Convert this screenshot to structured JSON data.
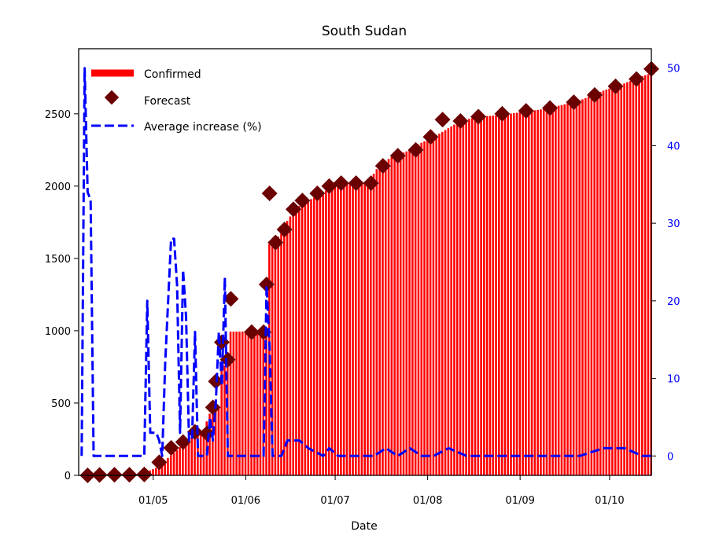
{
  "chart_data": {
    "type": "bar",
    "title": "South Sudan",
    "xlabel": "Date",
    "ylabel": "",
    "ylabel_right": "",
    "x_range": [
      "2020-04-06",
      "2020-10-15"
    ],
    "ylim": [
      0,
      2950
    ],
    "ylim_right": [
      -2.5,
      52.5
    ],
    "grid": false,
    "legend_position": "top-left",
    "x_ticks": [
      {
        "date": "2020-05-01",
        "label": "01/05"
      },
      {
        "date": "2020-06-01",
        "label": "01/06"
      },
      {
        "date": "2020-07-01",
        "label": "01/07"
      },
      {
        "date": "2020-08-01",
        "label": "01/08"
      },
      {
        "date": "2020-09-01",
        "label": "01/09"
      },
      {
        "date": "2020-10-01",
        "label": "01/10"
      }
    ],
    "y_ticks": [
      0,
      500,
      1000,
      1500,
      2000,
      2500
    ],
    "y_ticks_right": [
      0,
      10,
      20,
      30,
      40,
      50
    ],
    "colors": {
      "confirmed": "#ff0000",
      "forecast": "#6b0000",
      "average": "#0000ff",
      "right_axis": "#0000ff"
    },
    "series": [
      {
        "name": "Confirmed",
        "style": "bar",
        "points": [
          [
            "2020-04-06",
            1
          ],
          [
            "2020-04-10",
            2
          ],
          [
            "2020-04-15",
            4
          ],
          [
            "2020-04-20",
            4
          ],
          [
            "2020-04-25",
            5
          ],
          [
            "2020-04-30",
            34
          ],
          [
            "2020-05-03",
            60
          ],
          [
            "2020-05-06",
            120
          ],
          [
            "2020-05-09",
            175
          ],
          [
            "2020-05-12",
            235
          ],
          [
            "2020-05-15",
            280
          ],
          [
            "2020-05-18",
            320
          ],
          [
            "2020-05-21",
            480
          ],
          [
            "2020-05-24",
            760
          ],
          [
            "2020-05-27",
            994
          ],
          [
            "2020-06-01",
            994
          ],
          [
            "2020-06-05",
            994
          ],
          [
            "2020-06-08",
            994
          ],
          [
            "2020-06-09",
            1600
          ],
          [
            "2020-06-12",
            1650
          ],
          [
            "2020-06-15",
            1760
          ],
          [
            "2020-06-18",
            1850
          ],
          [
            "2020-06-22",
            1900
          ],
          [
            "2020-06-26",
            1940
          ],
          [
            "2020-06-30",
            2000
          ],
          [
            "2020-07-04",
            2020
          ],
          [
            "2020-07-08",
            2020
          ],
          [
            "2020-07-12",
            2020
          ],
          [
            "2020-07-16",
            2150
          ],
          [
            "2020-07-20",
            2200
          ],
          [
            "2020-07-25",
            2240
          ],
          [
            "2020-07-30",
            2300
          ],
          [
            "2020-08-04",
            2350
          ],
          [
            "2020-08-08",
            2400
          ],
          [
            "2020-08-12",
            2450
          ],
          [
            "2020-08-18",
            2480
          ],
          [
            "2020-08-25",
            2490
          ],
          [
            "2020-09-01",
            2510
          ],
          [
            "2020-09-08",
            2530
          ],
          [
            "2020-09-15",
            2560
          ],
          [
            "2020-09-22",
            2600
          ],
          [
            "2020-09-29",
            2660
          ],
          [
            "2020-10-06",
            2710
          ],
          [
            "2020-10-12",
            2760
          ],
          [
            "2020-10-15",
            2780
          ]
        ]
      },
      {
        "name": "Forecast",
        "style": "diamond",
        "points": [
          [
            "2020-04-09",
            0
          ],
          [
            "2020-04-13",
            3
          ],
          [
            "2020-04-18",
            4
          ],
          [
            "2020-04-23",
            4
          ],
          [
            "2020-04-28",
            6
          ],
          [
            "2020-05-03",
            90
          ],
          [
            "2020-05-07",
            190
          ],
          [
            "2020-05-11",
            230
          ],
          [
            "2020-05-15",
            300
          ],
          [
            "2020-05-19",
            290
          ],
          [
            "2020-05-21",
            470
          ],
          [
            "2020-05-22",
            650
          ],
          [
            "2020-05-24",
            920
          ],
          [
            "2020-05-26",
            800
          ],
          [
            "2020-05-27",
            1220
          ],
          [
            "2020-06-03",
            990
          ],
          [
            "2020-06-07",
            990
          ],
          [
            "2020-06-08",
            1320
          ],
          [
            "2020-06-09",
            1950
          ],
          [
            "2020-06-11",
            1610
          ],
          [
            "2020-06-14",
            1700
          ],
          [
            "2020-06-17",
            1840
          ],
          [
            "2020-06-20",
            1900
          ],
          [
            "2020-06-25",
            1950
          ],
          [
            "2020-06-29",
            2000
          ],
          [
            "2020-07-03",
            2020
          ],
          [
            "2020-07-08",
            2020
          ],
          [
            "2020-07-13",
            2020
          ],
          [
            "2020-07-17",
            2140
          ],
          [
            "2020-07-22",
            2210
          ],
          [
            "2020-07-28",
            2250
          ],
          [
            "2020-08-02",
            2340
          ],
          [
            "2020-08-06",
            2460
          ],
          [
            "2020-08-12",
            2450
          ],
          [
            "2020-08-18",
            2480
          ],
          [
            "2020-08-26",
            2500
          ],
          [
            "2020-09-03",
            2520
          ],
          [
            "2020-09-11",
            2540
          ],
          [
            "2020-09-19",
            2580
          ],
          [
            "2020-09-26",
            2630
          ],
          [
            "2020-10-03",
            2690
          ],
          [
            "2020-10-10",
            2740
          ],
          [
            "2020-10-15",
            2810
          ]
        ]
      },
      {
        "name": "Average increase (%)",
        "style": "dashed-line",
        "axis": "right",
        "points": [
          [
            "2020-04-07",
            0
          ],
          [
            "2020-04-08",
            50
          ],
          [
            "2020-04-09",
            34
          ],
          [
            "2020-04-10",
            33
          ],
          [
            "2020-04-11",
            0
          ],
          [
            "2020-04-14",
            0
          ],
          [
            "2020-04-19",
            0
          ],
          [
            "2020-04-24",
            0
          ],
          [
            "2020-04-28",
            0
          ],
          [
            "2020-04-29",
            20
          ],
          [
            "2020-04-30",
            3
          ],
          [
            "2020-05-01",
            3
          ],
          [
            "2020-05-02",
            3
          ],
          [
            "2020-05-03",
            2
          ],
          [
            "2020-05-04",
            0
          ],
          [
            "2020-05-05",
            12
          ],
          [
            "2020-05-07",
            28
          ],
          [
            "2020-05-08",
            28
          ],
          [
            "2020-05-09",
            22
          ],
          [
            "2020-05-10",
            3
          ],
          [
            "2020-05-11",
            24
          ],
          [
            "2020-05-12",
            18
          ],
          [
            "2020-05-13",
            2
          ],
          [
            "2020-05-14",
            2
          ],
          [
            "2020-05-15",
            16
          ],
          [
            "2020-05-16",
            0
          ],
          [
            "2020-05-17",
            0
          ],
          [
            "2020-05-19",
            0
          ],
          [
            "2020-05-20",
            5
          ],
          [
            "2020-05-21",
            2
          ],
          [
            "2020-05-22",
            7
          ],
          [
            "2020-05-23",
            16
          ],
          [
            "2020-05-24",
            9
          ],
          [
            "2020-05-25",
            23
          ],
          [
            "2020-05-26",
            0
          ],
          [
            "2020-06-01",
            0
          ],
          [
            "2020-06-06",
            0
          ],
          [
            "2020-06-07",
            0
          ],
          [
            "2020-06-08",
            22
          ],
          [
            "2020-06-09",
            14
          ],
          [
            "2020-06-10",
            0
          ],
          [
            "2020-06-13",
            0
          ],
          [
            "2020-06-15",
            2
          ],
          [
            "2020-06-19",
            2
          ],
          [
            "2020-06-22",
            1
          ],
          [
            "2020-06-27",
            0
          ],
          [
            "2020-06-29",
            1
          ],
          [
            "2020-07-02",
            0
          ],
          [
            "2020-07-08",
            0
          ],
          [
            "2020-07-14",
            0
          ],
          [
            "2020-07-18",
            1
          ],
          [
            "2020-07-22",
            0
          ],
          [
            "2020-07-26",
            1
          ],
          [
            "2020-07-30",
            0
          ],
          [
            "2020-08-03",
            0
          ],
          [
            "2020-08-08",
            1
          ],
          [
            "2020-08-14",
            0
          ],
          [
            "2020-08-20",
            0
          ],
          [
            "2020-08-28",
            0
          ],
          [
            "2020-09-05",
            0
          ],
          [
            "2020-09-13",
            0
          ],
          [
            "2020-09-21",
            0
          ],
          [
            "2020-09-29",
            1
          ],
          [
            "2020-10-06",
            1
          ],
          [
            "2020-10-12",
            0
          ],
          [
            "2020-10-15",
            0
          ]
        ]
      }
    ]
  }
}
